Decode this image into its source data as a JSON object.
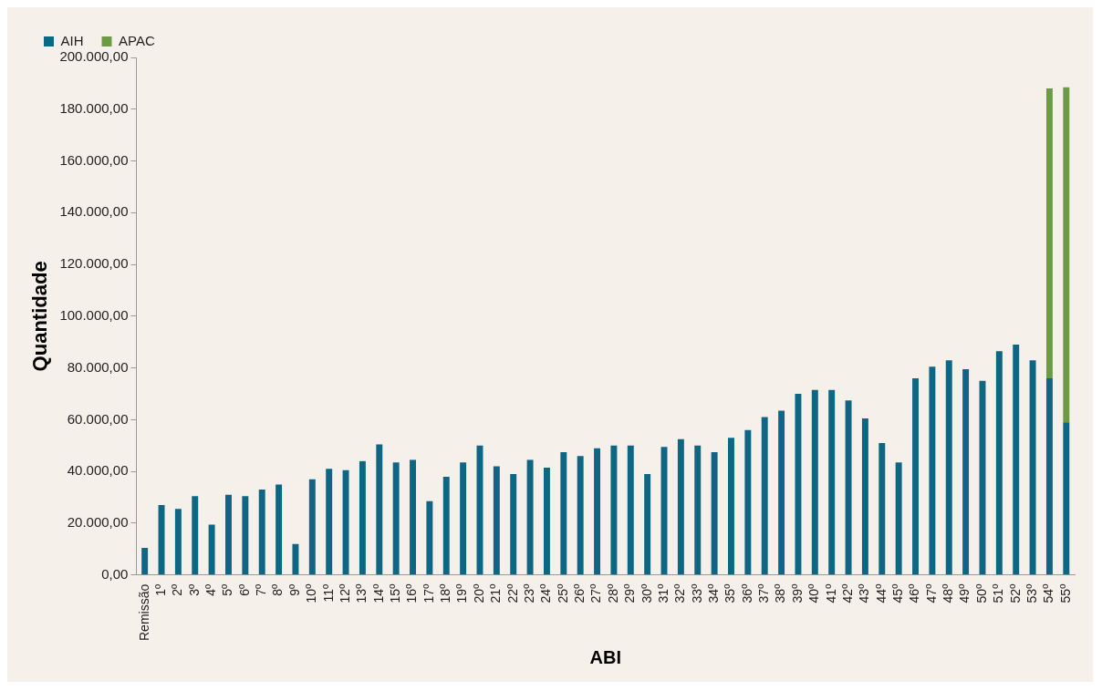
{
  "chart_data": {
    "type": "bar",
    "stacked": true,
    "xlabel": "ABI",
    "ylabel": "Quantidade",
    "categories": [
      "Remissão",
      "1º",
      "2º",
      "3º",
      "4º",
      "5º",
      "6º",
      "7º",
      "8º",
      "9º",
      "10º",
      "11º",
      "12º",
      "13º",
      "14º",
      "15º",
      "16º",
      "17º",
      "18º",
      "19º",
      "20º",
      "21º",
      "22º",
      "23º",
      "24º",
      "25º",
      "26º",
      "27º",
      "28º",
      "29º",
      "30º",
      "31º",
      "32º",
      "33º",
      "34º",
      "35º",
      "36º",
      "37º",
      "38º",
      "39º",
      "40º",
      "41º",
      "42º",
      "43º",
      "44º",
      "45º",
      "46º",
      "47º",
      "48º",
      "49º",
      "50º",
      "51º",
      "52º",
      "53º",
      "54º",
      "55º"
    ],
    "series": [
      {
        "name": "AIH",
        "color": "#0e6685",
        "values": [
          10500,
          27000,
          25500,
          30500,
          19500,
          31000,
          30500,
          33000,
          35000,
          12000,
          37000,
          41000,
          40500,
          44000,
          50500,
          43500,
          44500,
          28500,
          38000,
          43500,
          50000,
          42000,
          39000,
          44500,
          41500,
          47500,
          46000,
          49000,
          50000,
          50000,
          39000,
          49500,
          52500,
          50000,
          47500,
          53000,
          56000,
          61000,
          63500,
          70000,
          71500,
          71500,
          67500,
          60500,
          51000,
          43500,
          76000,
          80500,
          83000,
          79500,
          75000,
          86500,
          89000,
          83000,
          76000,
          59000
        ]
      },
      {
        "name": "APAC",
        "color": "#6e9a45",
        "values": [
          null,
          null,
          null,
          null,
          null,
          null,
          null,
          null,
          null,
          null,
          null,
          null,
          null,
          null,
          null,
          null,
          null,
          null,
          null,
          null,
          null,
          null,
          null,
          null,
          null,
          null,
          null,
          null,
          null,
          null,
          null,
          null,
          null,
          null,
          null,
          null,
          null,
          null,
          null,
          null,
          null,
          null,
          null,
          null,
          null,
          null,
          null,
          null,
          null,
          null,
          null,
          null,
          null,
          null,
          112000,
          129500
        ]
      }
    ],
    "ylim": [
      0,
      200000
    ],
    "yticks": [
      {
        "value": 0,
        "label": "0,00"
      },
      {
        "value": 20000,
        "label": "20.000,00"
      },
      {
        "value": 40000,
        "label": "40.000,00"
      },
      {
        "value": 60000,
        "label": "60.000,00"
      },
      {
        "value": 80000,
        "label": "80.000,00"
      },
      {
        "value": 100000,
        "label": "100.000,00"
      },
      {
        "value": 120000,
        "label": "120.000,00"
      },
      {
        "value": 140000,
        "label": "140.000,00"
      },
      {
        "value": 160000,
        "label": "160.000,00"
      },
      {
        "value": 180000,
        "label": "180.000,00"
      },
      {
        "value": 200000,
        "label": "200.000,00"
      }
    ],
    "grid": false,
    "legend": "top left"
  }
}
